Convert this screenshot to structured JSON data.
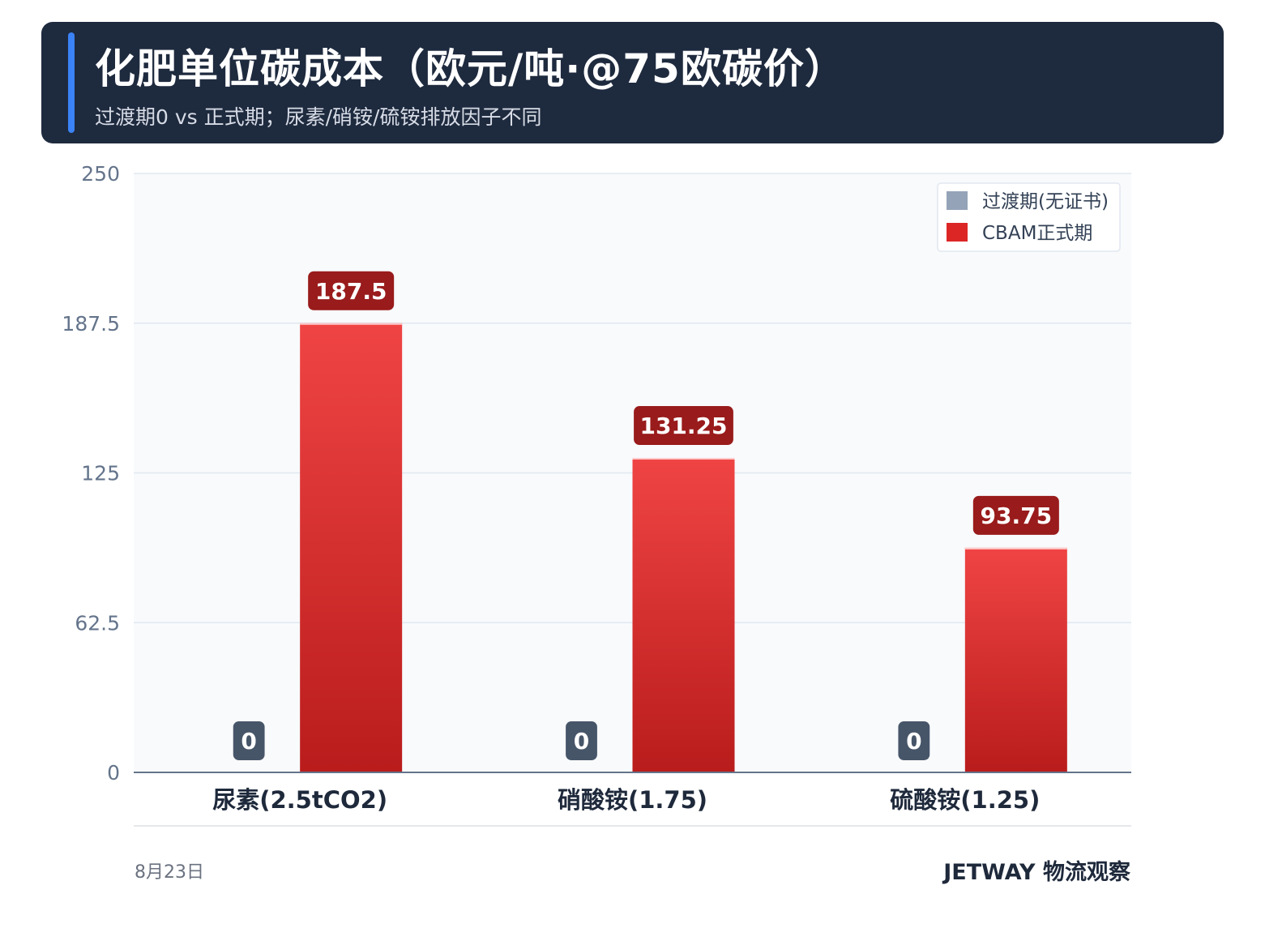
{
  "header": {
    "title": "化肥单位碳成本（欧元/吨·@75欧碳价）",
    "subtitle": "过渡期0 vs 正式期；尿素/硝铵/硫铵排放因子不同"
  },
  "footer": {
    "date": "8月23日",
    "brand": "JETWAY 物流观察"
  },
  "colors": {
    "transition": "#94a3b8",
    "transition_label_bg": "#475569",
    "cbam_top": "#f04444",
    "cbam_bottom": "#b91c1c",
    "cbam_label_bg": "#991b1b"
  },
  "chart_data": {
    "type": "bar",
    "title": "化肥单位碳成本（欧元/吨·@75欧碳价）",
    "categories": [
      "尿素(2.5tCO2)",
      "硝酸铵(1.75)",
      "硫酸铵(1.25)"
    ],
    "series": [
      {
        "name": "过渡期(无证书)",
        "values": [
          0,
          0,
          0
        ],
        "labels": [
          "0",
          "0",
          "0"
        ]
      },
      {
        "name": "CBAM正式期",
        "values": [
          187.5,
          131.25,
          93.75
        ],
        "labels": [
          "187.5",
          "131.25",
          "93.75"
        ]
      }
    ],
    "ylim": [
      0,
      250
    ],
    "yticks": [
      "0",
      "62.5",
      "125",
      "187.5",
      "250"
    ],
    "ytick_values": [
      0,
      62.5,
      125,
      187.5,
      250
    ],
    "grid": true,
    "legend": "top-right"
  }
}
